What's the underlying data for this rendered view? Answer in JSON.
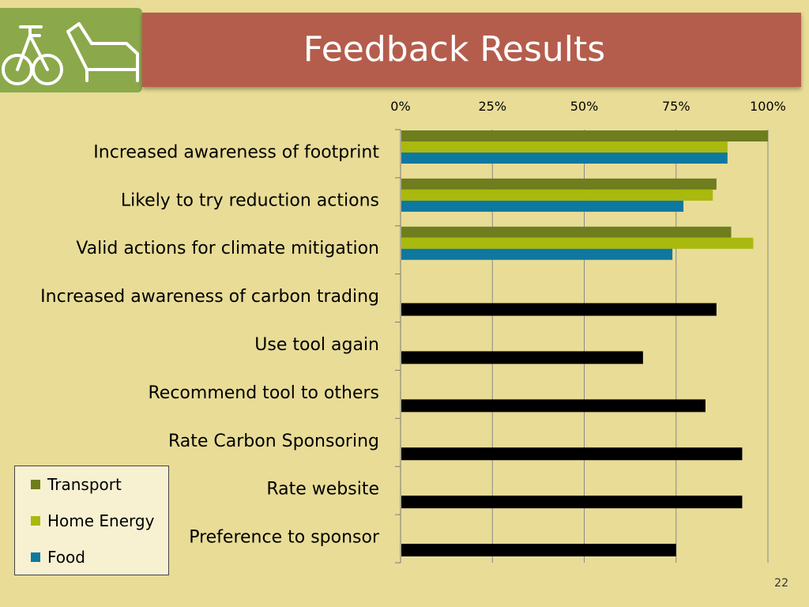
{
  "slide": {
    "title": "Feedback Results",
    "page_number": "22"
  },
  "colors": {
    "background": "#e8dc97",
    "banner": "#b55d4c",
    "logo_panel": "#8ba94a",
    "transport": "#6e7d1d",
    "home_energy": "#a9b90d",
    "food": "#0f78a0",
    "overall": "#000000"
  },
  "logo": {
    "icons": [
      "bicycle-icon",
      "armchair-icon"
    ]
  },
  "chart_data": {
    "type": "bar",
    "orientation": "horizontal",
    "x_ticks": [
      "0%",
      "25%",
      "50%",
      "75%",
      "100%"
    ],
    "xlim": [
      0,
      100
    ],
    "axis_position": "top",
    "grid": "vertical",
    "categories": [
      "Increased awareness of footprint",
      "Likely to try reduction actions",
      "Valid actions for climate mitigation",
      "Increased awareness of carbon trading",
      "Use tool again",
      "Recommend tool to others",
      "Rate Carbon Sponsoring",
      "Rate website",
      "Preference to sponsor"
    ],
    "series": [
      {
        "name": "Transport",
        "color": "#6e7d1d",
        "values": [
          100,
          86,
          90,
          null,
          null,
          null,
          null,
          null,
          null
        ]
      },
      {
        "name": "Home Energy",
        "color": "#a9b90d",
        "values": [
          89,
          85,
          96,
          null,
          null,
          null,
          null,
          null,
          null
        ]
      },
      {
        "name": "Food",
        "color": "#0f78a0",
        "values": [
          89,
          77,
          74,
          null,
          null,
          null,
          null,
          null,
          null
        ]
      },
      {
        "color": "#000000",
        "values": [
          null,
          null,
          null,
          86,
          66,
          83,
          93,
          93,
          75
        ]
      }
    ],
    "legend": {
      "placement": "bottom-left",
      "items": [
        "Transport",
        "Home Energy",
        "Food"
      ]
    }
  }
}
